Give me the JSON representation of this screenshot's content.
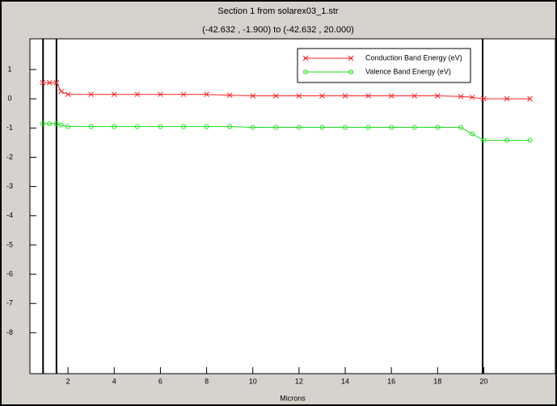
{
  "chart_data": {
    "type": "line",
    "title": "Section 1 from solarex03_1.str",
    "subtitle": "(-42.632 , -1.900) to (-42.632 , 20.000)",
    "x_label": "Microns",
    "x": [
      0.9,
      1.2,
      1.5,
      1.7,
      2,
      3,
      4,
      5,
      6,
      7,
      8,
      9,
      10,
      11,
      12,
      13,
      14,
      15,
      16,
      17,
      18,
      19,
      19.5,
      20,
      21,
      22
    ],
    "series": [
      {
        "name": "Conduction Band Energy (eV)",
        "color": "#ff2020",
        "marker": "x",
        "values": [
          0.55,
          0.55,
          0.55,
          0.25,
          0.15,
          0.15,
          0.15,
          0.15,
          0.15,
          0.15,
          0.15,
          0.12,
          0.1,
          0.1,
          0.1,
          0.1,
          0.1,
          0.1,
          0.1,
          0.1,
          0.1,
          0.08,
          0.05,
          0,
          0,
          0
        ]
      },
      {
        "name": "Valence Band Energy (eV)",
        "color": "#20e020",
        "marker": "circle",
        "values": [
          -0.85,
          -0.85,
          -0.85,
          -0.9,
          -0.95,
          -0.95,
          -0.95,
          -0.95,
          -0.95,
          -0.95,
          -0.95,
          -0.95,
          -0.98,
          -0.98,
          -0.98,
          -0.98,
          -0.98,
          -0.98,
          -0.98,
          -0.98,
          -0.98,
          -0.98,
          -1.2,
          -1.42,
          -1.42,
          -1.42
        ]
      }
    ],
    "vlines": [
      0.92,
      1.5,
      19.95
    ],
    "xlim": [
      0.35,
      23.1
    ],
    "xticks": [
      2,
      4,
      6,
      8,
      10,
      12,
      14,
      16,
      18,
      20
    ],
    "ylim": [
      -9.4,
      2.05
    ],
    "yticks": [
      -8,
      -7,
      -6,
      -5,
      -4,
      -3,
      -2,
      -1,
      0,
      1
    ],
    "legend": "top-right"
  }
}
